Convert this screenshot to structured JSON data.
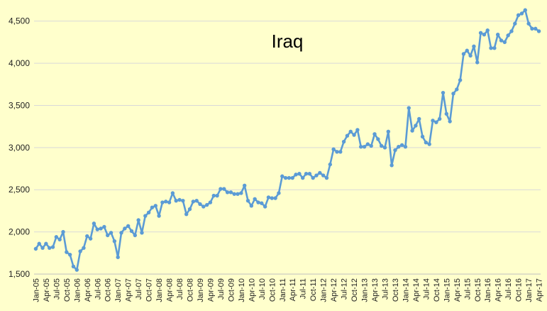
{
  "chart_data": {
    "type": "line",
    "title": "Iraq",
    "xlabel": "",
    "ylabel": "",
    "ylim": [
      1500,
      4750
    ],
    "yticks": [
      1500,
      2000,
      2500,
      3000,
      3500,
      4000,
      4500
    ],
    "ytick_labels": [
      "1,500",
      "2,000",
      "2,500",
      "3,000",
      "3,500",
      "4,000",
      "4,500"
    ],
    "grid": "horizontal",
    "legend": "none",
    "start": "Jan-05",
    "x": [
      "Jan-05",
      "Feb-05",
      "Mar-05",
      "Apr-05",
      "May-05",
      "Jun-05",
      "Jul-05",
      "Aug-05",
      "Sep-05",
      "Oct-05",
      "Nov-05",
      "Dec-05",
      "Jan-06",
      "Feb-06",
      "Mar-06",
      "Apr-06",
      "May-06",
      "Jun-06",
      "Jul-06",
      "Aug-06",
      "Sep-06",
      "Oct-06",
      "Nov-06",
      "Dec-06",
      "Jan-07",
      "Feb-07",
      "Mar-07",
      "Apr-07",
      "May-07",
      "Jun-07",
      "Jul-07",
      "Aug-07",
      "Sep-07",
      "Oct-07",
      "Nov-07",
      "Dec-07",
      "Jan-08",
      "Feb-08",
      "Mar-08",
      "Apr-08",
      "May-08",
      "Jun-08",
      "Jul-08",
      "Aug-08",
      "Sep-08",
      "Oct-08",
      "Nov-08",
      "Dec-08",
      "Jan-09",
      "Feb-09",
      "Mar-09",
      "Apr-09",
      "May-09",
      "Jun-09",
      "Jul-09",
      "Aug-09",
      "Sep-09",
      "Oct-09",
      "Nov-09",
      "Dec-09",
      "Jan-10",
      "Feb-10",
      "Mar-10",
      "Apr-10",
      "May-10",
      "Jun-10",
      "Jul-10",
      "Aug-10",
      "Sep-10",
      "Oct-10",
      "Nov-10",
      "Dec-10",
      "Jan-11",
      "Feb-11",
      "Mar-11",
      "Apr-11",
      "May-11",
      "Jun-11",
      "Jul-11",
      "Aug-11",
      "Sep-11",
      "Oct-11",
      "Nov-11",
      "Dec-11",
      "Jan-12",
      "Feb-12",
      "Mar-12",
      "Apr-12",
      "May-12",
      "Jun-12",
      "Jul-12",
      "Aug-12",
      "Sep-12",
      "Oct-12",
      "Nov-12",
      "Dec-12",
      "Jan-13",
      "Feb-13",
      "Mar-13",
      "Apr-13",
      "May-13",
      "Jun-13",
      "Jul-13",
      "Aug-13",
      "Sep-13",
      "Oct-13",
      "Nov-13",
      "Dec-13",
      "Jan-14",
      "Feb-14",
      "Mar-14",
      "Apr-14",
      "May-14",
      "Jun-14",
      "Jul-14",
      "Aug-14",
      "Sep-14",
      "Oct-14",
      "Nov-14",
      "Dec-14",
      "Jan-15",
      "Feb-15",
      "Mar-15",
      "Apr-15",
      "May-15",
      "Jun-15",
      "Jul-15",
      "Aug-15",
      "Sep-15",
      "Oct-15",
      "Nov-15",
      "Dec-15",
      "Jan-16",
      "Feb-16",
      "Mar-16",
      "Apr-16",
      "May-16",
      "Jun-16",
      "Jul-16",
      "Aug-16",
      "Sep-16",
      "Oct-16",
      "Nov-16",
      "Dec-16",
      "Jan-17",
      "Feb-17",
      "Mar-17",
      "Apr-17"
    ],
    "xtick_labels": [
      "Jan-05",
      "Apr-05",
      "Jul-05",
      "Oct-05",
      "Jan-06",
      "Apr-06",
      "Jul-06",
      "Oct-06",
      "Jan-07",
      "Apr-07",
      "Jul-07",
      "Oct-07",
      "Jan-08",
      "Apr-08",
      "Jul-08",
      "Oct-08",
      "Jan-09",
      "Apr-09",
      "Jul-09",
      "Oct-09",
      "Jan-10",
      "Apr-10",
      "Jul-10",
      "Oct-10",
      "Jan-11",
      "Apr-11",
      "Jul-11",
      "Oct-11",
      "Jan-12",
      "Apr-12",
      "Jul-12",
      "Oct-12",
      "Jan-13",
      "Apr-13",
      "Jul-13",
      "Oct-13",
      "Jan-14",
      "Apr-14",
      "Jul-14",
      "Oct-14",
      "Jan-15",
      "Apr-15",
      "Jul-15",
      "Oct-15",
      "Jan-16",
      "Apr-16",
      "Jul-16",
      "Oct-16",
      "Jan-17",
      "Apr-17"
    ],
    "series": [
      {
        "name": "",
        "color": "#5b9bd5",
        "values": [
          1800,
          1860,
          1810,
          1860,
          1810,
          1820,
          1940,
          1910,
          2000,
          1760,
          1730,
          1590,
          1550,
          1770,
          1810,
          1950,
          1920,
          2100,
          2030,
          2040,
          2060,
          1960,
          1990,
          1890,
          1700,
          1990,
          2040,
          2070,
          2010,
          1960,
          2140,
          1990,
          2190,
          2230,
          2290,
          2310,
          2190,
          2350,
          2360,
          2350,
          2460,
          2370,
          2380,
          2370,
          2210,
          2270,
          2360,
          2370,
          2330,
          2300,
          2320,
          2350,
          2430,
          2430,
          2510,
          2510,
          2470,
          2470,
          2450,
          2450,
          2460,
          2550,
          2370,
          2310,
          2390,
          2350,
          2340,
          2300,
          2410,
          2400,
          2400,
          2460,
          2660,
          2640,
          2640,
          2640,
          2680,
          2690,
          2640,
          2690,
          2690,
          2640,
          2670,
          2700,
          2670,
          2640,
          2800,
          2980,
          2950,
          2950,
          3070,
          3140,
          3190,
          3150,
          3210,
          3010,
          3010,
          3040,
          3020,
          3160,
          3100,
          3020,
          3000,
          3190,
          2790,
          2970,
          3010,
          3030,
          3010,
          3470,
          3200,
          3260,
          3340,
          3130,
          3060,
          3040,
          3320,
          3300,
          3340,
          3650,
          3400,
          3310,
          3640,
          3690,
          3800,
          4110,
          4150,
          4090,
          4200,
          4010,
          4360,
          4340,
          4390,
          4180,
          4180,
          4340,
          4270,
          4250,
          4330,
          4380,
          4470,
          4570,
          4590,
          4630,
          4470,
          4410,
          4410,
          4380
        ]
      }
    ]
  }
}
